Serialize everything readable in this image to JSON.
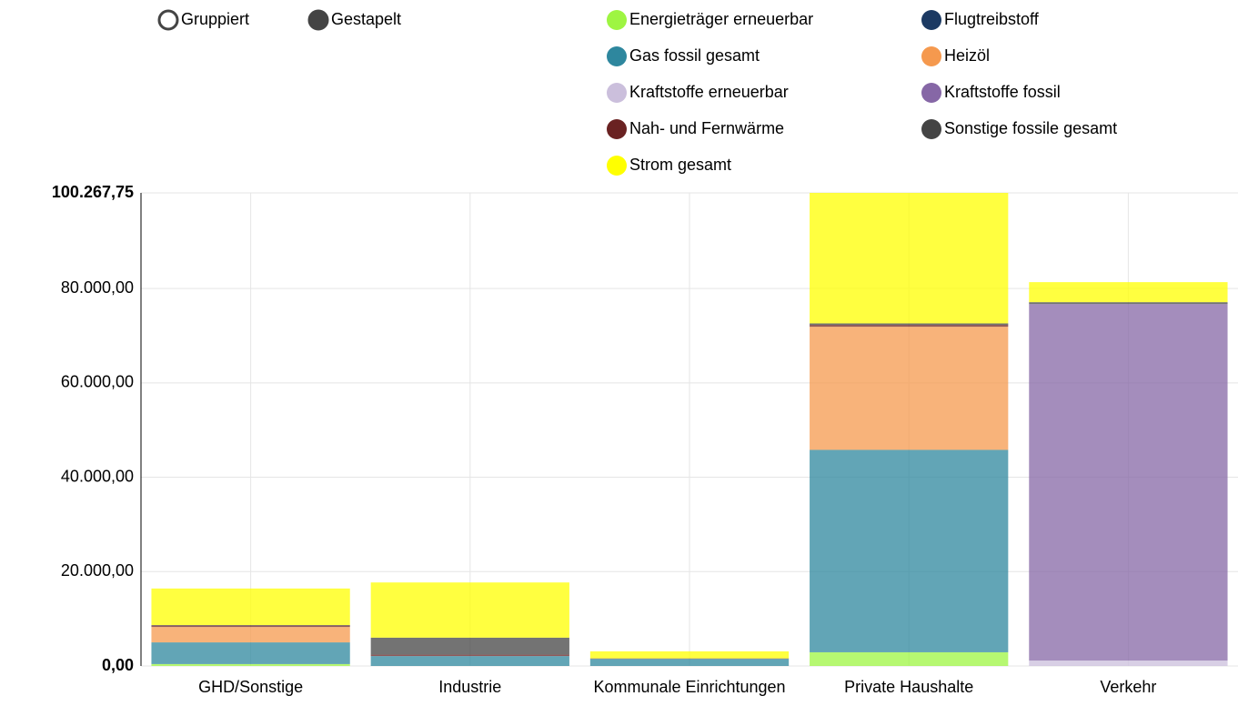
{
  "controls": {
    "options": [
      "Gruppiert",
      "Gestapelt"
    ],
    "selected": 1
  },
  "chart_data": {
    "type": "stacked_bar",
    "categories": [
      "GHD/Sonstige",
      "Industrie",
      "Kommunale Einrichtungen",
      "Private Haushalte",
      "Verkehr"
    ],
    "series": [
      {
        "name": "Energieträger erneuerbar",
        "color": "#9ef542",
        "values": [
          400,
          0,
          0,
          2900,
          0
        ]
      },
      {
        "name": "Flugtreibstoff",
        "color": "#1c3a63",
        "values": [
          0,
          0,
          0,
          0,
          0
        ]
      },
      {
        "name": "Gas fossil gesamt",
        "color": "#2e879e",
        "values": [
          4600,
          2100,
          1500,
          42900,
          0
        ]
      },
      {
        "name": "Heizöl",
        "color": "#f5994e",
        "values": [
          3270,
          0,
          0,
          26100,
          0
        ]
      },
      {
        "name": "Kraftstoffe erneuerbar",
        "color": "#cbbfdc",
        "values": [
          0,
          0,
          0,
          0,
          1150
        ]
      },
      {
        "name": "Kraftstoffe fossil",
        "color": "#8667a6",
        "values": [
          0,
          0,
          0,
          0,
          75550
        ]
      },
      {
        "name": "Nah- und Fernwärme",
        "color": "#6a2222",
        "values": [
          300,
          300,
          100,
          400,
          0
        ]
      },
      {
        "name": "Sonstige fossile gesamt",
        "color": "#444444",
        "values": [
          100,
          3600,
          0,
          300,
          400
        ]
      },
      {
        "name": "Strom gesamt",
        "color": "#ffff00",
        "values": [
          7750,
          11700,
          1500,
          27667.75,
          4250
        ]
      }
    ],
    "ylim": [
      0,
      100267.75
    ],
    "yticks": [
      {
        "value": 0,
        "label": "0,00"
      },
      {
        "value": 20000,
        "label": "20.000,00"
      },
      {
        "value": 40000,
        "label": "40.000,00"
      },
      {
        "value": 60000,
        "label": "60.000,00"
      },
      {
        "value": 80000,
        "label": "80.000,00"
      },
      {
        "value": 100267.75,
        "label": "100.267,75"
      }
    ],
    "grid": true,
    "opacity": 0.75
  }
}
